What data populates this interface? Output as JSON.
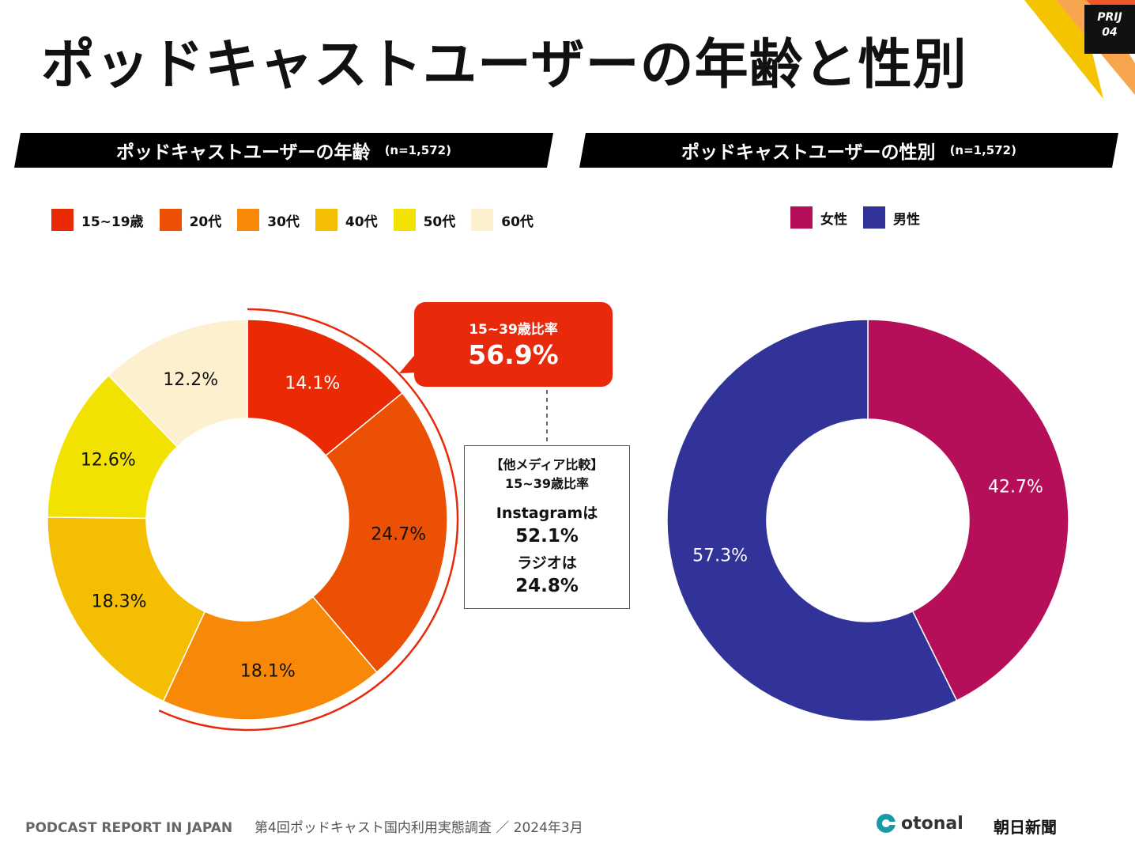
{
  "title": "ポッドキャストユーザーの年齢と性別",
  "badge": {
    "line1": "PRIJ",
    "line2": "04"
  },
  "chart_data": [
    {
      "type": "pie",
      "variant": "donut",
      "title": "ポッドキャストユーザーの年齢",
      "n_label": "(n=1,572)",
      "categories": [
        "15~19歳",
        "20代",
        "30代",
        "40代",
        "50代",
        "60代"
      ],
      "values": [
        14.1,
        24.7,
        18.1,
        18.3,
        12.6,
        12.2
      ],
      "labels": [
        "14.1%",
        "24.7%",
        "18.1%",
        "18.3%",
        "12.6%",
        "12.2%"
      ],
      "colors": [
        "#ea2a05",
        "#eb5004",
        "#f88807",
        "#f4be03",
        "#f2e202",
        "#fdf0cf"
      ],
      "label_colors": [
        "#ffffff",
        "#111111",
        "#111111",
        "#111111",
        "#111111",
        "#111111"
      ],
      "legend": "top-left"
    },
    {
      "type": "pie",
      "variant": "donut",
      "title": "ポッドキャストユーザーの性別",
      "n_label": "(n=1,572)",
      "categories": [
        "女性",
        "男性"
      ],
      "values": [
        42.7,
        57.3
      ],
      "labels": [
        "42.7%",
        "57.3%"
      ],
      "colors": [
        "#b60f5a",
        "#323399"
      ],
      "label_colors": [
        "#ffffff",
        "#ffffff"
      ],
      "legend": "top-center"
    }
  ],
  "callout": {
    "label": "15~39歳比率",
    "value": "56.9%"
  },
  "compare": {
    "heading": "【他メディア比較】",
    "subheading": "15~39歳比率",
    "instagram_label": "Instagramは",
    "instagram_value": "52.1%",
    "radio_label": "ラジオは",
    "radio_value": "24.8%"
  },
  "footer": {
    "report": "PODCAST REPORT IN JAPAN",
    "survey": "第4回ポッドキャスト国内利用実態調査 ／ 2024年3月"
  },
  "logos": {
    "otonal": "otonal",
    "asahi": "朝日新聞"
  },
  "accent_colors": {
    "banner": "#000000",
    "callout": "#e8290b",
    "arc": "#e8290b"
  }
}
